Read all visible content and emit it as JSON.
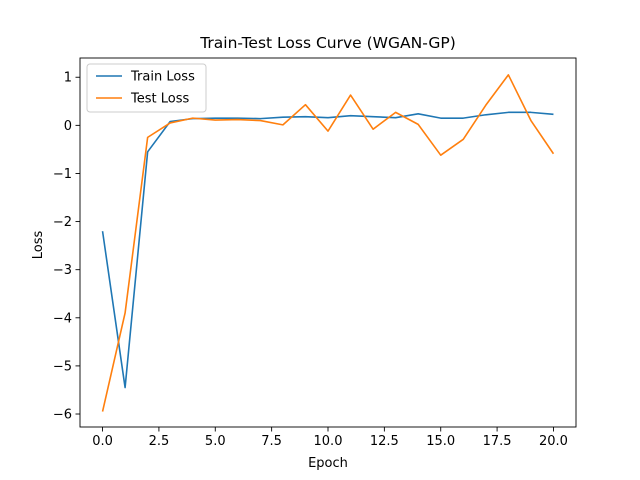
{
  "chart_data": {
    "type": "line",
    "title": "Train-Test Loss Curve (WGAN-GP)",
    "xlabel": "Epoch",
    "ylabel": "Loss",
    "xlim": [
      -1.0,
      21.0
    ],
    "ylim": [
      -6.27,
      1.4
    ],
    "xticks": [
      0.0,
      2.5,
      5.0,
      7.5,
      10.0,
      12.5,
      15.0,
      17.5,
      20.0
    ],
    "xtick_labels": [
      "0.0",
      "2.5",
      "5.0",
      "7.5",
      "10.0",
      "12.5",
      "15.0",
      "17.5",
      "20.0"
    ],
    "yticks": [
      1,
      0,
      -1,
      -2,
      -3,
      -4,
      -5,
      -6
    ],
    "ytick_labels": [
      "1",
      "0",
      "−1",
      "−2",
      "−3",
      "−4",
      "−5",
      "−6"
    ],
    "grid": false,
    "legend_position": "top-left",
    "x": [
      0,
      1,
      2,
      3,
      4,
      5,
      6,
      7,
      8,
      9,
      10,
      11,
      12,
      13,
      14,
      15,
      16,
      17,
      18,
      19,
      20
    ],
    "series": [
      {
        "name": "Train Loss",
        "color": "#1f77b4",
        "values": [
          -2.2,
          -5.45,
          -0.55,
          0.08,
          0.14,
          0.15,
          0.15,
          0.14,
          0.17,
          0.18,
          0.16,
          0.2,
          0.18,
          0.16,
          0.24,
          0.15,
          0.15,
          0.22,
          0.27,
          0.27,
          0.23
        ]
      },
      {
        "name": "Test Loss",
        "color": "#ff7f0e",
        "values": [
          -5.95,
          -3.9,
          -0.25,
          0.05,
          0.15,
          0.11,
          0.12,
          0.1,
          0.01,
          0.43,
          -0.12,
          0.63,
          -0.08,
          0.27,
          0.02,
          -0.62,
          -0.29,
          0.42,
          1.05,
          0.1,
          -0.59
        ]
      }
    ]
  }
}
